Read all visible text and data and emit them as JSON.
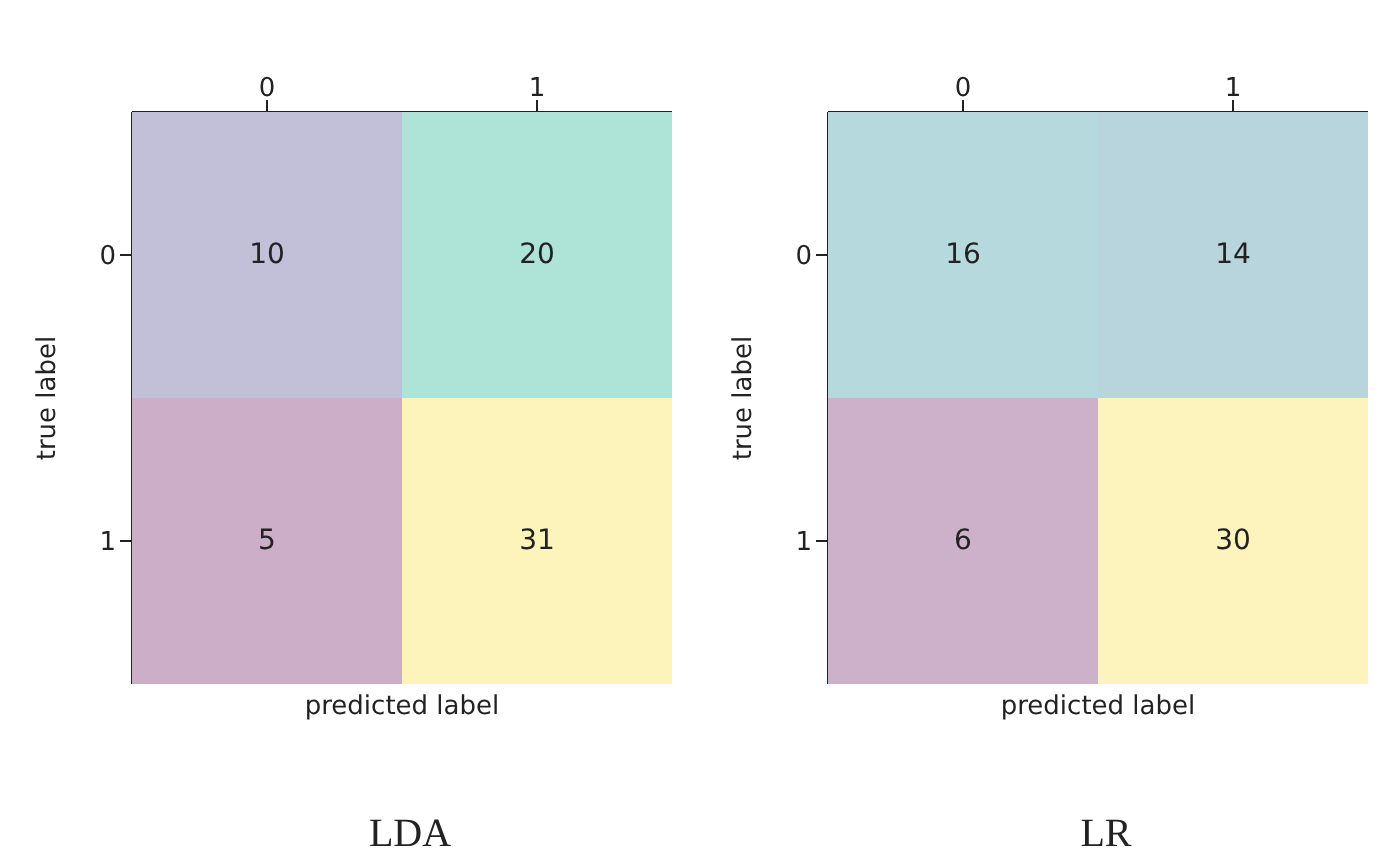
{
  "chart_data": [
    {
      "type": "heatmap",
      "title": "LDA",
      "xlabel": "predicted label",
      "ylabel": "true label",
      "categories": [
        "0",
        "1"
      ],
      "y_categories": [
        "0",
        "1"
      ],
      "cells": [
        [
          10,
          20
        ],
        [
          5,
          31
        ]
      ],
      "colors": [
        "#c2c0d9",
        "#aee3d8",
        "#cdaec9",
        "#fdf4bc"
      ],
      "data_labels": true
    },
    {
      "type": "heatmap",
      "title": "LR",
      "xlabel": "predicted label",
      "ylabel": "true label",
      "categories": [
        "0",
        "1"
      ],
      "y_categories": [
        "0",
        "1"
      ],
      "cells": [
        [
          16,
          14
        ],
        [
          6,
          30
        ]
      ],
      "colors": [
        "#b6d9dd",
        "#b8d4dc",
        "#cdb0ca",
        "#fdf3bd"
      ],
      "data_labels": true
    }
  ]
}
